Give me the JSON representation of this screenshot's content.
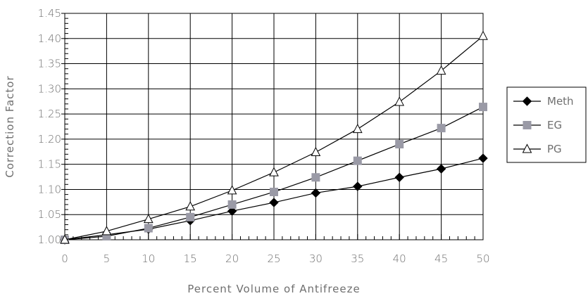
{
  "chart_data": {
    "type": "line",
    "title": "",
    "xlabel": "Percent Volume of Antifreeze",
    "ylabel": "Correction Factor",
    "x": [
      0,
      5,
      10,
      15,
      20,
      25,
      30,
      35,
      40,
      45,
      50
    ],
    "xlim": [
      0,
      50
    ],
    "ylim": [
      1.0,
      1.45
    ],
    "x_ticks": [
      "0",
      "5",
      "10",
      "15",
      "20",
      "25",
      "30",
      "35",
      "40",
      "45",
      "50"
    ],
    "y_ticks": [
      "1.00",
      "1.05",
      "1.10",
      "1.15",
      "1.20",
      "1.25",
      "1.30",
      "1.35",
      "1.40",
      "1.45"
    ],
    "grid": true,
    "legend_position": "right",
    "series": [
      {
        "name": "Meth",
        "marker": "diamond",
        "marker_color": "#000000",
        "line_color": "#000000",
        "values": [
          1.0,
          1.01,
          1.021,
          1.038,
          1.057,
          1.074,
          1.093,
          1.106,
          1.124,
          1.141,
          1.162
        ]
      },
      {
        "name": "EG",
        "marker": "square",
        "marker_color": "#9a9aa6",
        "line_color": "#000000",
        "values": [
          1.0,
          1.007,
          1.023,
          1.045,
          1.07,
          1.095,
          1.124,
          1.157,
          1.19,
          1.222,
          1.264
        ]
      },
      {
        "name": "PG",
        "marker": "triangle",
        "marker_color": "#ffffff",
        "line_color": "#000000",
        "values": [
          1.0,
          1.017,
          1.041,
          1.066,
          1.098,
          1.134,
          1.174,
          1.22,
          1.274,
          1.336,
          1.405
        ]
      }
    ]
  }
}
